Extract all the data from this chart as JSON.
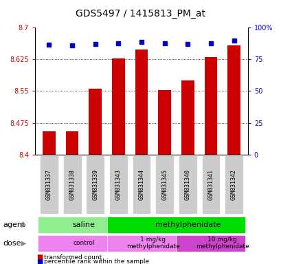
{
  "title": "GDS5497 / 1415813_PM_at",
  "samples": [
    "GSM831337",
    "GSM831338",
    "GSM831339",
    "GSM831343",
    "GSM831344",
    "GSM831345",
    "GSM831340",
    "GSM831341",
    "GSM831342"
  ],
  "bar_values": [
    8.455,
    8.455,
    8.555,
    8.628,
    8.648,
    8.553,
    8.575,
    8.63,
    8.658
  ],
  "percentile_values": [
    8.66,
    8.658,
    8.662,
    8.663,
    8.667,
    8.663,
    8.662,
    8.663,
    8.67
  ],
  "y_min": 8.4,
  "y_max": 8.7,
  "y_ticks_left": [
    8.4,
    8.475,
    8.55,
    8.625,
    8.7
  ],
  "y_ticks_right": [
    0,
    25,
    50,
    75,
    100
  ],
  "right_tick_labels": [
    "0",
    "25",
    "50",
    "75",
    "100%"
  ],
  "bar_color": "#cc0000",
  "dot_color": "#0000cc",
  "agent_groups": [
    {
      "label": "saline",
      "start": 0,
      "end": 3,
      "color": "#90ee90"
    },
    {
      "label": "methylphenidate",
      "start": 3,
      "end": 9,
      "color": "#00dd00"
    }
  ],
  "dose_groups": [
    {
      "label": "control",
      "start": 0,
      "end": 3,
      "color": "#ee82ee"
    },
    {
      "label": "1 mg/kg\nmethylphenidate",
      "start": 3,
      "end": 6,
      "color": "#ee82ee"
    },
    {
      "label": "10 mg/kg\nmethylphenidate",
      "start": 6,
      "end": 9,
      "color": "#cc44cc"
    }
  ],
  "legend_items": [
    {
      "color": "#cc0000",
      "label": "transformed count"
    },
    {
      "color": "#0000cc",
      "label": "percentile rank within the sample"
    }
  ],
  "tick_bg_color": "#cccccc",
  "title_fontsize": 10,
  "tick_fontsize": 7,
  "label_fontsize": 8,
  "annot_fontsize": 8
}
